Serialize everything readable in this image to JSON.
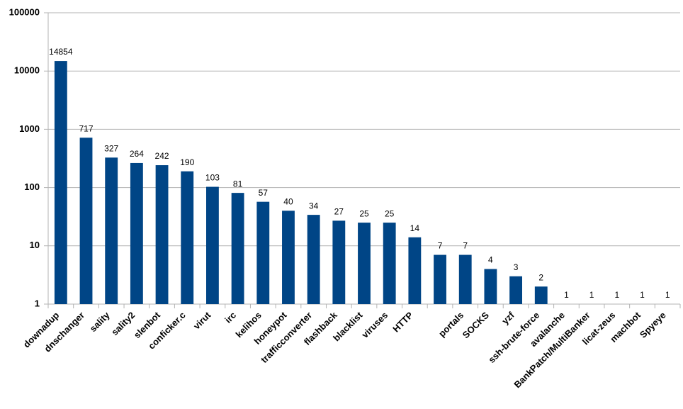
{
  "chart_data": {
    "type": "bar",
    "categories": [
      "downadup",
      "dnschanger",
      "sality",
      "sality2",
      "slenbot",
      "conficker.c",
      "virut",
      "irc",
      "kelihos",
      "honeypot",
      "trafficconverter",
      "flashback",
      "blacklist",
      "viruses",
      "HTTP",
      null,
      "portals",
      "SOCKS",
      "yzf",
      "ssh-brute-force",
      "avalanche",
      "BankPatch/MultiBanker",
      "licat-zeus",
      "machbot",
      "Spyeye"
    ],
    "values": [
      14854,
      717,
      327,
      264,
      242,
      190,
      103,
      81,
      57,
      40,
      34,
      27,
      25,
      25,
      14,
      7,
      7,
      4,
      3,
      2,
      1,
      1,
      1,
      1,
      1
    ],
    "color": "#004586",
    "ylim": [
      1,
      100000
    ],
    "yticks": [
      1,
      10,
      100,
      1000,
      10000,
      100000
    ],
    "yscale": "log",
    "grid": true
  }
}
